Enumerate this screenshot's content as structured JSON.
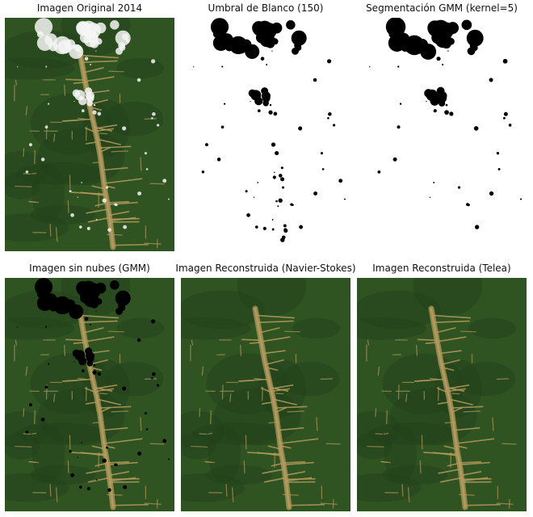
{
  "figure": {
    "panels": [
      {
        "title": "Imagen Original 2014",
        "kind": "rgb",
        "clouds": "white"
      },
      {
        "title": "Umbral de Blanco (150)",
        "kind": "mask"
      },
      {
        "title": "Segmentación GMM (kernel=5)",
        "kind": "mask"
      },
      {
        "title": "Imagen sin nubes (GMM)",
        "kind": "rgb",
        "clouds": "black"
      },
      {
        "title": "Imagen Reconstruida (Navier-Stokes)",
        "kind": "rgb",
        "clouds": "none"
      },
      {
        "title": "Imagen Reconstruida (Telea)",
        "kind": "rgb",
        "clouds": "none"
      }
    ],
    "colors": {
      "forest": "#2f5321",
      "forest_dark": "#22401a",
      "deforestation": "#b39a5c",
      "cloud": "#f4f6f4",
      "mask_background": "#ffffff",
      "mask_foreground": "#000000"
    }
  }
}
